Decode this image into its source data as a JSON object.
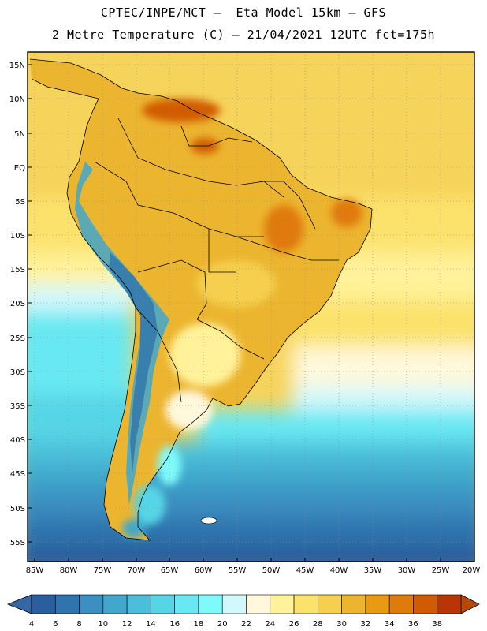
{
  "header": {
    "line1": "CPTEC/INPE/MCT –  Eta Model 15km – GFS",
    "line2": "2 Metre Temperature (C) – 21/04/2021 12UTC fct=175h"
  },
  "map": {
    "latitude_labels": [
      "15N",
      "10N",
      "5N",
      "EQ",
      "5S",
      "10S",
      "15S",
      "20S",
      "25S",
      "30S",
      "35S",
      "40S",
      "45S",
      "50S",
      "55S"
    ],
    "longitude_labels": [
      "85W",
      "80W",
      "75W",
      "70W",
      "65W",
      "60W",
      "55W",
      "50W",
      "45W",
      "40W",
      "35W",
      "30W",
      "25W",
      "20W"
    ]
  },
  "colorbar": {
    "labels": [
      "4",
      "6",
      "8",
      "10",
      "12",
      "14",
      "16",
      "18",
      "20",
      "22",
      "24",
      "26",
      "28",
      "30",
      "32",
      "34",
      "36",
      "38"
    ],
    "colors": [
      "#2b5e9c",
      "#2f74ad",
      "#3b8fc1",
      "#41a7cc",
      "#4bbfd9",
      "#57d5e6",
      "#68e8f2",
      "#7ffafb",
      "#d2f8fb",
      "#fff8dc",
      "#fff29a",
      "#fbe26c",
      "#f5cf4e",
      "#ecb52f",
      "#e89a13",
      "#e07a0a",
      "#d15b05",
      "#b83606"
    ],
    "low_color": "#3567a7",
    "high_color": "#b5480b"
  }
}
